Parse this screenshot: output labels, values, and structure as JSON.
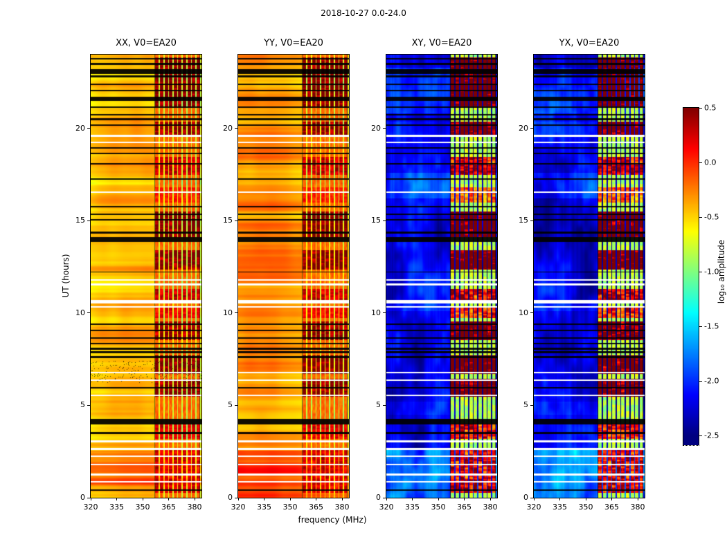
{
  "figure": {
    "background": "#ffffff"
  },
  "chart_data": {
    "type": "heatmap",
    "title": "2018-10-27 0.0-24.0",
    "xlabel": "frequency (MHz)",
    "ylabel": "UT (hours)",
    "xlim": [
      320,
      384
    ],
    "ylim": [
      0,
      24
    ],
    "xticks": [
      320,
      335,
      350,
      365,
      380
    ],
    "yticks": [
      0,
      5,
      10,
      15,
      20
    ],
    "colormap": "jet",
    "value_range": [
      -2.5,
      0.5
    ],
    "panels": [
      {
        "title": "XX, V0=EA20",
        "kind": "parallel",
        "base_level": -0.52
      },
      {
        "title": "YY, V0=EA20",
        "kind": "parallel",
        "base_level": -0.38
      },
      {
        "title": "XY, V0=EA20",
        "kind": "cross",
        "base_level": -2.2
      },
      {
        "title": "YX, V0=EA20",
        "kind": "cross",
        "base_level": -2.2
      }
    ],
    "colorbar": {
      "label": "log₁₀ amplitude",
      "ticks": [
        "0.5",
        "0.0",
        "-0.5",
        "-1.0",
        "-1.5",
        "-2.0",
        "-2.5"
      ],
      "tick_values": [
        0.5,
        0.0,
        -0.5,
        -1.0,
        -1.5,
        -2.0,
        -2.5
      ]
    },
    "description": "Dynamic spectra (UT vs frequency) for four correlation products. Parallel-hand panels (XX, YY) sit near log10 amplitude -0.5 to -0.3 (yellow/orange); cross-hand panels (XY, YX) sit near -2.2 (dark blue). A strong RFI band occupies ~357-383 MHz with channelized bursts reaching +0.5. Horizontal black rows are flagged integrations; white rows are data gaps.",
    "features": {
      "rfi_band_mhz": [
        357.0,
        383.4
      ],
      "rfi_channel_spacing_mhz": 2.65,
      "rfi_bursts_ut": [
        [
          21.2,
          23.85,
          0.95
        ],
        [
          19.55,
          20.35,
          0.85
        ],
        [
          17.5,
          18.45,
          0.6
        ],
        [
          16.0,
          16.8,
          0.35
        ],
        [
          14.1,
          15.5,
          1.0
        ],
        [
          12.35,
          13.4,
          0.9
        ],
        [
          10.65,
          11.3,
          0.6
        ],
        [
          9.75,
          10.35,
          0.45
        ],
        [
          8.55,
          9.55,
          0.85
        ],
        [
          6.7,
          7.7,
          0.9
        ],
        [
          5.45,
          6.45,
          0.9
        ],
        [
          3.2,
          4.0,
          0.5
        ],
        [
          0.25,
          2.7,
          0.55
        ]
      ],
      "flagged_black_ut": [
        [
          23.78,
          0.05
        ],
        [
          23.5,
          0.06
        ],
        [
          23.08,
          0.12
        ],
        [
          22.82,
          0.05
        ],
        [
          22.4,
          0.04
        ],
        [
          22.05,
          0.04
        ],
        [
          21.6,
          0.1
        ],
        [
          21.15,
          0.04
        ],
        [
          20.75,
          0.04
        ],
        [
          20.5,
          0.05
        ],
        [
          20.18,
          0.04
        ],
        [
          18.95,
          0.04
        ],
        [
          18.65,
          0.05
        ],
        [
          18.08,
          0.04
        ],
        [
          17.25,
          0.03
        ],
        [
          15.75,
          0.04
        ],
        [
          15.35,
          0.04
        ],
        [
          15.05,
          0.04
        ],
        [
          14.35,
          0.05
        ],
        [
          13.98,
          0.12
        ],
        [
          12.22,
          0.03
        ],
        [
          9.4,
          0.05
        ],
        [
          9.05,
          0.04
        ],
        [
          8.65,
          0.04
        ],
        [
          8.35,
          0.04
        ],
        [
          8.08,
          0.05
        ],
        [
          7.88,
          0.04
        ],
        [
          7.62,
          0.04
        ],
        [
          5.95,
          0.03
        ],
        [
          4.12,
          0.15
        ],
        [
          3.5,
          0.05
        ],
        [
          0.42,
          0.03
        ]
      ],
      "gaps_white_ut": [
        [
          19.6,
          0.06
        ],
        [
          19.25,
          0.05
        ],
        [
          16.55,
          0.03
        ],
        [
          11.8,
          0.05
        ],
        [
          11.55,
          0.04
        ],
        [
          10.62,
          0.09
        ],
        [
          10.32,
          0.04
        ],
        [
          6.78,
          0.05
        ],
        [
          6.35,
          0.04
        ],
        [
          5.55,
          0.03
        ],
        [
          3.05,
          0.05
        ],
        [
          2.65,
          0.06
        ],
        [
          2.25,
          0.04
        ],
        [
          1.8,
          0.05
        ],
        [
          1.25,
          0.05
        ],
        [
          0.85,
          0.04
        ]
      ],
      "cross_patches_ut": [
        [
          20.8,
          23.3,
          0.3
        ],
        [
          16.2,
          17.6,
          0.25
        ],
        [
          19.6,
          20.35,
          0.15
        ],
        [
          10.1,
          10.6,
          0.2
        ],
        [
          4.5,
          5.2,
          0.12
        ],
        [
          0.0,
          2.6,
          0.6
        ]
      ],
      "bright_bottom_ut": [
        0.0,
        2.55
      ],
      "xx_speckle_ut": [
        6.2,
        7.4
      ]
    }
  }
}
